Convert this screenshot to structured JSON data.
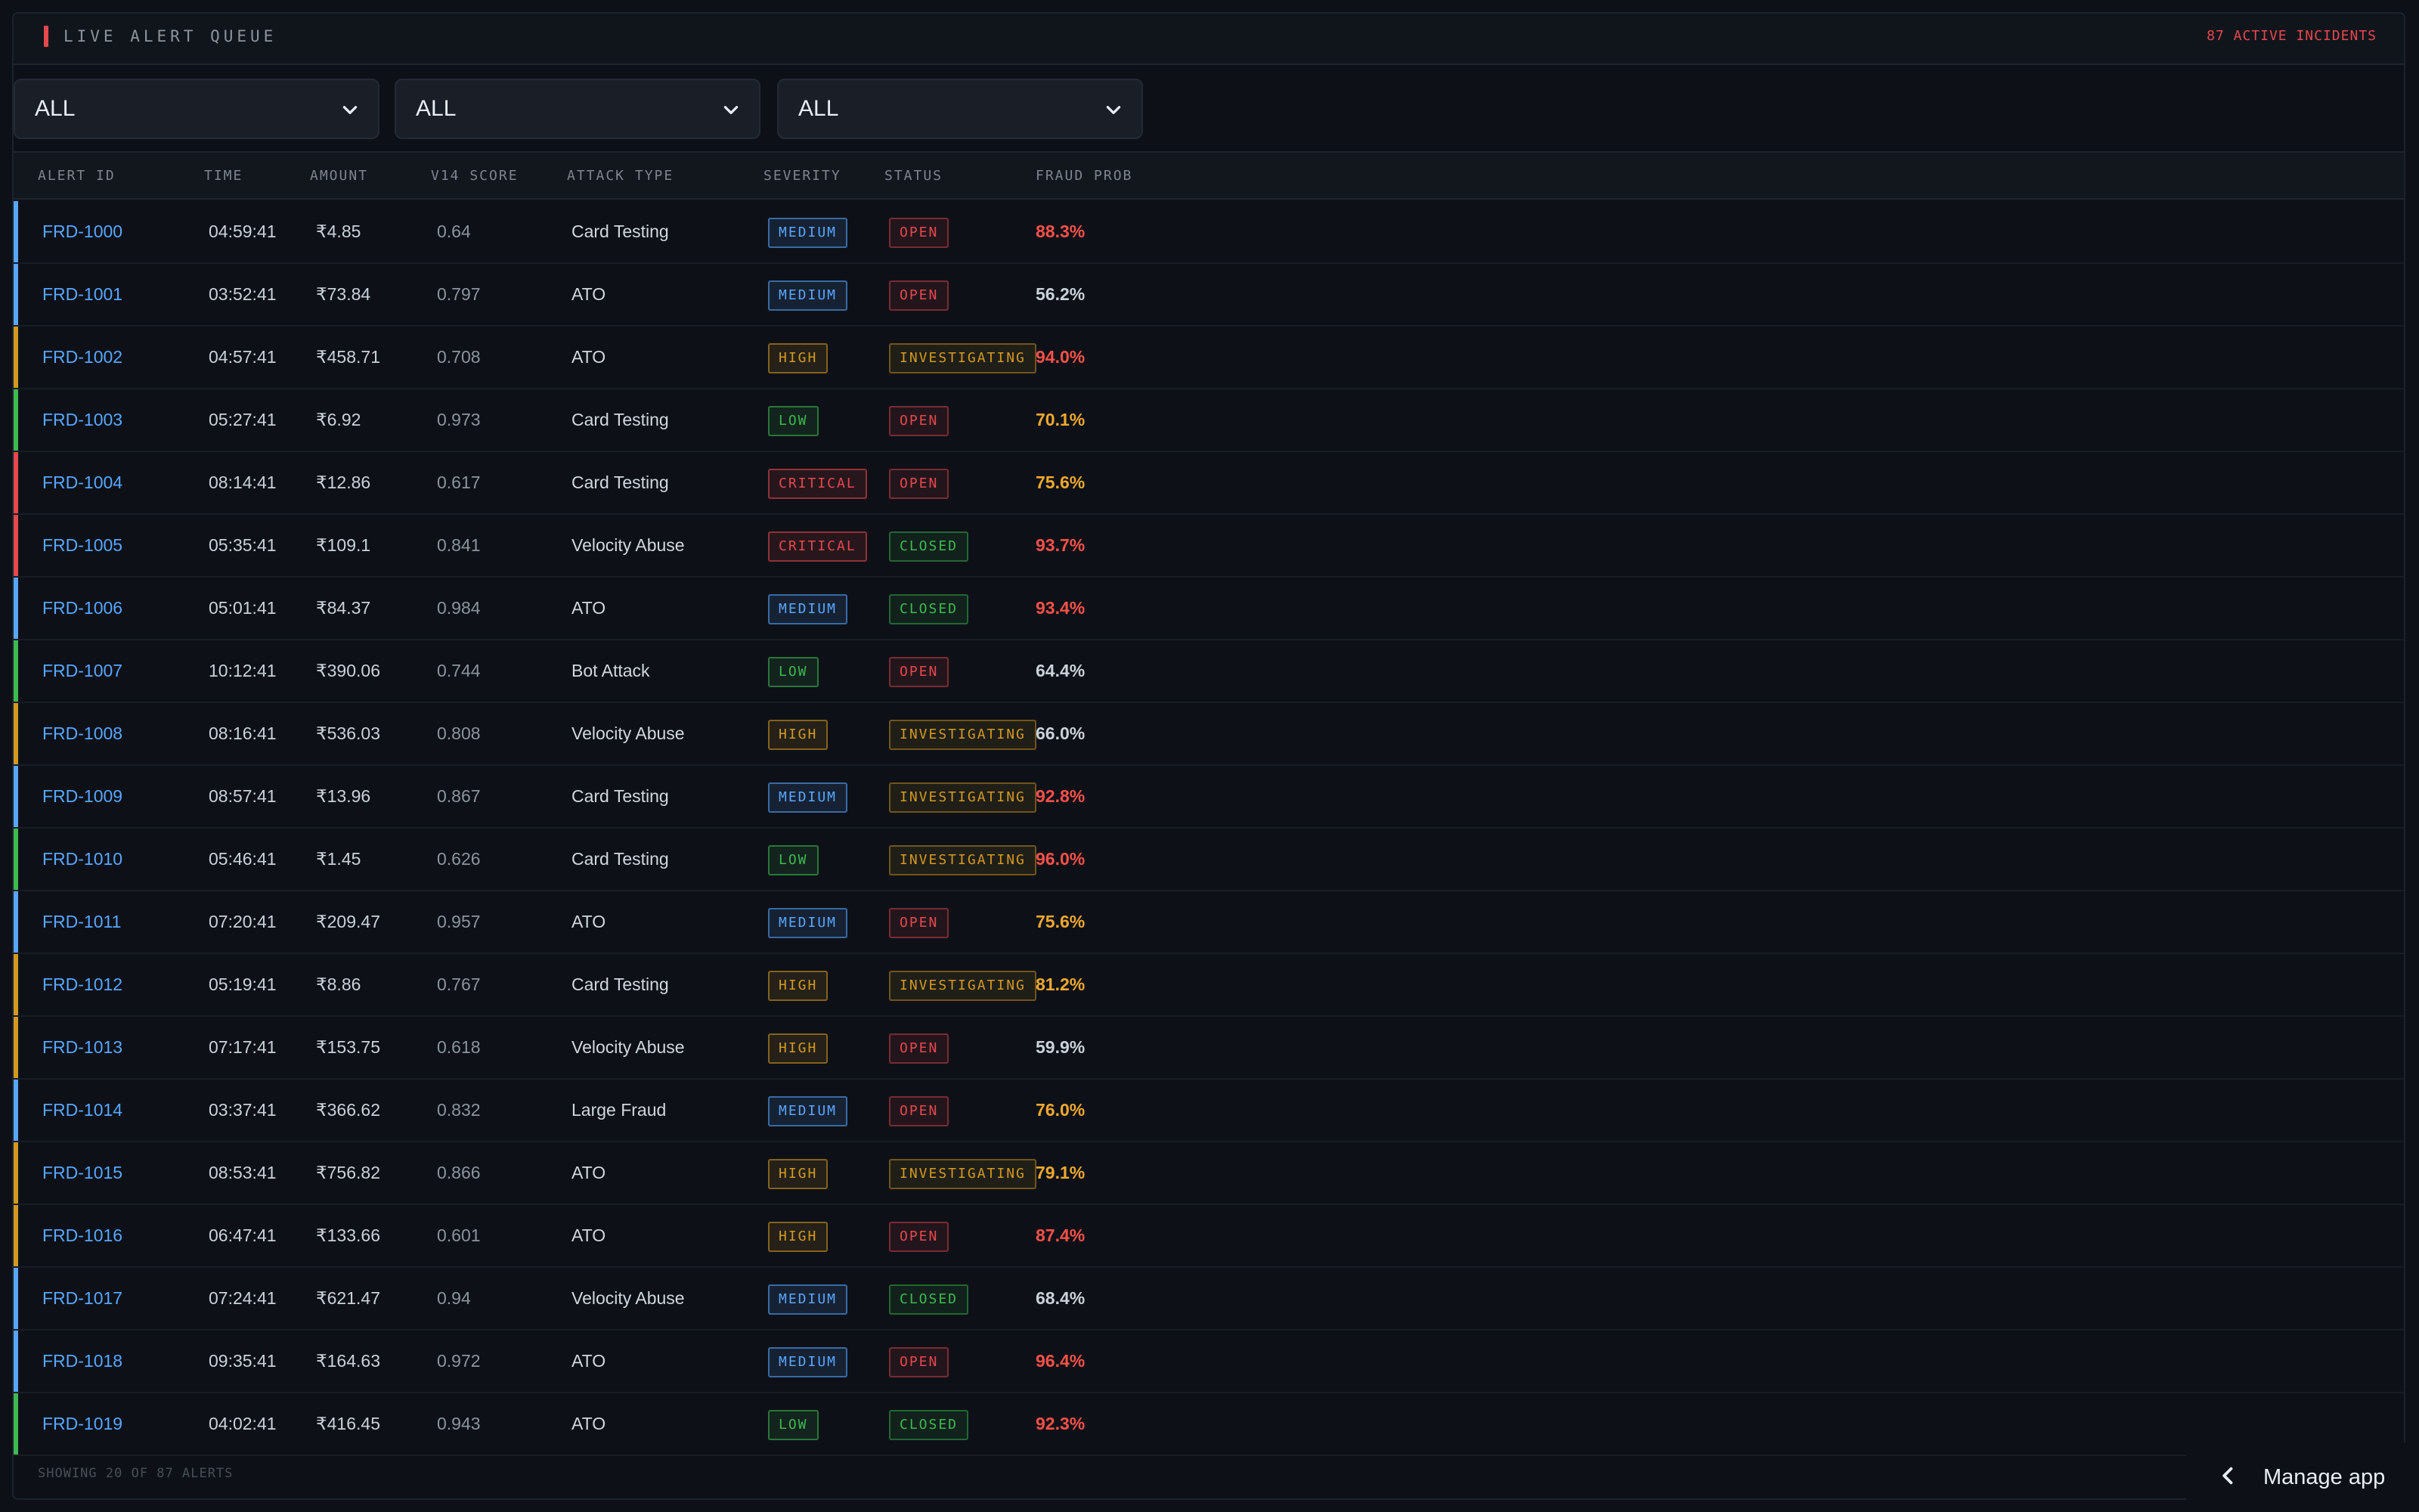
{
  "header": {
    "title": "LIVE ALERT QUEUE",
    "incident_count": "87 ACTIVE INCIDENTS"
  },
  "filters": [
    {
      "value": "ALL"
    },
    {
      "value": "ALL"
    },
    {
      "value": "ALL"
    }
  ],
  "columns": [
    "ALERT ID",
    "TIME",
    "AMOUNT",
    "V14 SCORE",
    "ATTACK TYPE",
    "SEVERITY",
    "STATUS",
    "FRAUD PROB"
  ],
  "colors": {
    "critical": "#e5484d",
    "high": "#d29922",
    "medium": "#58a6ff",
    "low": "#3fb950",
    "open": "#e5484d",
    "investigating": "#d29922",
    "closed": "#3fb950",
    "prob_high": "#f85149",
    "prob_mid": "#f0a830",
    "prob_low": "#c9d1d9"
  },
  "alerts": [
    {
      "id": "FRD-1000",
      "time": "04:59:41",
      "amount": "₹4.85",
      "score": "0.64",
      "type": "Card Testing",
      "severity": "MEDIUM",
      "status": "OPEN",
      "prob": "88.3%"
    },
    {
      "id": "FRD-1001",
      "time": "03:52:41",
      "amount": "₹73.84",
      "score": "0.797",
      "type": "ATO",
      "severity": "MEDIUM",
      "status": "OPEN",
      "prob": "56.2%"
    },
    {
      "id": "FRD-1002",
      "time": "04:57:41",
      "amount": "₹458.71",
      "score": "0.708",
      "type": "ATO",
      "severity": "HIGH",
      "status": "INVESTIGATING",
      "prob": "94.0%"
    },
    {
      "id": "FRD-1003",
      "time": "05:27:41",
      "amount": "₹6.92",
      "score": "0.973",
      "type": "Card Testing",
      "severity": "LOW",
      "status": "OPEN",
      "prob": "70.1%"
    },
    {
      "id": "FRD-1004",
      "time": "08:14:41",
      "amount": "₹12.86",
      "score": "0.617",
      "type": "Card Testing",
      "severity": "CRITICAL",
      "status": "OPEN",
      "prob": "75.6%"
    },
    {
      "id": "FRD-1005",
      "time": "05:35:41",
      "amount": "₹109.1",
      "score": "0.841",
      "type": "Velocity Abuse",
      "severity": "CRITICAL",
      "status": "CLOSED",
      "prob": "93.7%"
    },
    {
      "id": "FRD-1006",
      "time": "05:01:41",
      "amount": "₹84.37",
      "score": "0.984",
      "type": "ATO",
      "severity": "MEDIUM",
      "status": "CLOSED",
      "prob": "93.4%"
    },
    {
      "id": "FRD-1007",
      "time": "10:12:41",
      "amount": "₹390.06",
      "score": "0.744",
      "type": "Bot Attack",
      "severity": "LOW",
      "status": "OPEN",
      "prob": "64.4%"
    },
    {
      "id": "FRD-1008",
      "time": "08:16:41",
      "amount": "₹536.03",
      "score": "0.808",
      "type": "Velocity Abuse",
      "severity": "HIGH",
      "status": "INVESTIGATING",
      "prob": "66.0%"
    },
    {
      "id": "FRD-1009",
      "time": "08:57:41",
      "amount": "₹13.96",
      "score": "0.867",
      "type": "Card Testing",
      "severity": "MEDIUM",
      "status": "INVESTIGATING",
      "prob": "92.8%"
    },
    {
      "id": "FRD-1010",
      "time": "05:46:41",
      "amount": "₹1.45",
      "score": "0.626",
      "type": "Card Testing",
      "severity": "LOW",
      "status": "INVESTIGATING",
      "prob": "96.0%"
    },
    {
      "id": "FRD-1011",
      "time": "07:20:41",
      "amount": "₹209.47",
      "score": "0.957",
      "type": "ATO",
      "severity": "MEDIUM",
      "status": "OPEN",
      "prob": "75.6%"
    },
    {
      "id": "FRD-1012",
      "time": "05:19:41",
      "amount": "₹8.86",
      "score": "0.767",
      "type": "Card Testing",
      "severity": "HIGH",
      "status": "INVESTIGATING",
      "prob": "81.2%"
    },
    {
      "id": "FRD-1013",
      "time": "07:17:41",
      "amount": "₹153.75",
      "score": "0.618",
      "type": "Velocity Abuse",
      "severity": "HIGH",
      "status": "OPEN",
      "prob": "59.9%"
    },
    {
      "id": "FRD-1014",
      "time": "03:37:41",
      "amount": "₹366.62",
      "score": "0.832",
      "type": "Large Fraud",
      "severity": "MEDIUM",
      "status": "OPEN",
      "prob": "76.0%"
    },
    {
      "id": "FRD-1015",
      "time": "08:53:41",
      "amount": "₹756.82",
      "score": "0.866",
      "type": "ATO",
      "severity": "HIGH",
      "status": "INVESTIGATING",
      "prob": "79.1%"
    },
    {
      "id": "FRD-1016",
      "time": "06:47:41",
      "amount": "₹133.66",
      "score": "0.601",
      "type": "ATO",
      "severity": "HIGH",
      "status": "OPEN",
      "prob": "87.4%"
    },
    {
      "id": "FRD-1017",
      "time": "07:24:41",
      "amount": "₹621.47",
      "score": "0.94",
      "type": "Velocity Abuse",
      "severity": "MEDIUM",
      "status": "CLOSED",
      "prob": "68.4%"
    },
    {
      "id": "FRD-1018",
      "time": "09:35:41",
      "amount": "₹164.63",
      "score": "0.972",
      "type": "ATO",
      "severity": "MEDIUM",
      "status": "OPEN",
      "prob": "96.4%"
    },
    {
      "id": "FRD-1019",
      "time": "04:02:41",
      "amount": "₹416.45",
      "score": "0.943",
      "type": "ATO",
      "severity": "LOW",
      "status": "CLOSED",
      "prob": "92.3%"
    }
  ],
  "footer": "SHOWING 20 OF 87 ALERTS",
  "manage_app": {
    "label": "Manage app",
    "icon": "chevron-left-icon"
  }
}
